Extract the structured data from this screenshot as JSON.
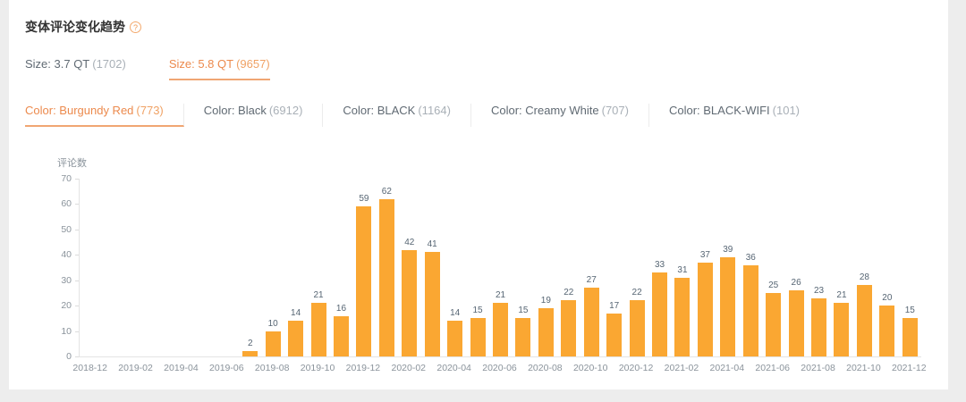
{
  "page": {
    "background": "#ededed",
    "card_background": "#ffffff"
  },
  "header": {
    "title": "变体评论变化趋势",
    "help_icon": "?"
  },
  "filters": {
    "size_tabs": [
      {
        "label": "Size: 3.7 QT",
        "count": "(1702)",
        "selected": false
      },
      {
        "label": "Size: 5.8 QT",
        "count": "(9657)",
        "selected": true
      }
    ],
    "color_tabs": [
      {
        "label": "Color: Burgundy Red",
        "count": "(773)",
        "selected": true
      },
      {
        "label": "Color: Black",
        "count": "(6912)",
        "selected": false
      },
      {
        "label": "Color: BLACK",
        "count": "(1164)",
        "selected": false
      },
      {
        "label": "Color: Creamy White",
        "count": "(707)",
        "selected": false
      },
      {
        "label": "Color: BLACK-WIFI",
        "count": "(101)",
        "selected": false
      }
    ]
  },
  "colors": {
    "accent_text": "#ec8a4d",
    "accent_underline": "#f0a673",
    "bar": "#faa732",
    "tab_text": "#606a73",
    "tab_count": "#a9b0b7",
    "axis_text": "#8a939b"
  },
  "chart_data": {
    "type": "bar",
    "title": "",
    "xlabel": "",
    "ylabel": "评论数",
    "ylim": [
      0,
      70
    ],
    "ytick_interval": 10,
    "grid": false,
    "legend": null,
    "x_label_every": 2,
    "bar_color": "#faa732",
    "categories": [
      "2018-12",
      "2019-01",
      "2019-02",
      "2019-03",
      "2019-04",
      "2019-05",
      "2019-06",
      "2019-07",
      "2019-08",
      "2019-09",
      "2019-10",
      "2019-11",
      "2019-12",
      "2020-01",
      "2020-02",
      "2020-03",
      "2020-04",
      "2020-05",
      "2020-06",
      "2020-07",
      "2020-08",
      "2020-09",
      "2020-10",
      "2020-11",
      "2020-12",
      "2021-01",
      "2021-02",
      "2021-03",
      "2021-04",
      "2021-05",
      "2021-06",
      "2021-07",
      "2021-08",
      "2021-09",
      "2021-10",
      "2021-11",
      "2021-12"
    ],
    "values": [
      0,
      0,
      0,
      0,
      0,
      0,
      0,
      2,
      10,
      14,
      21,
      16,
      59,
      62,
      42,
      41,
      14,
      15,
      21,
      15,
      19,
      22,
      27,
      17,
      22,
      33,
      31,
      37,
      39,
      36,
      25,
      26,
      23,
      21,
      28,
      20,
      15
    ]
  }
}
